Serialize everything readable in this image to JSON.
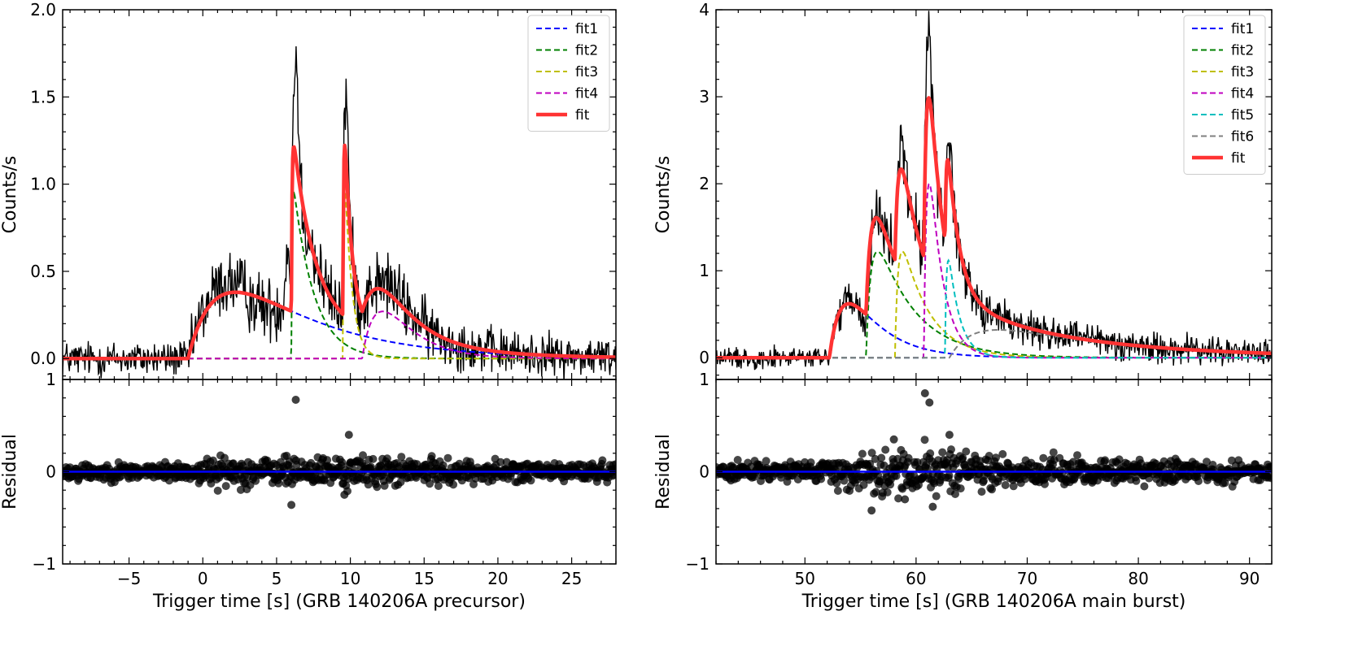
{
  "chart_data": [
    {
      "type": "line",
      "panel": "left",
      "xlabel": "Trigger time [s] (GRB 140206A precursor)",
      "ylabel_top": "Counts/s",
      "ylabel_bottom": "Residual",
      "xlim": [
        -9.5,
        28
      ],
      "ylim_top": [
        -0.12,
        2.0
      ],
      "ylim_bottom": [
        -1,
        1
      ],
      "x_ticks": [
        -5,
        0,
        5,
        10,
        15,
        20,
        25
      ],
      "x_tick_labels": [
        "−5",
        "0",
        "5",
        "10",
        "15",
        "20",
        "25"
      ],
      "y_ticks_top": [
        0.0,
        0.5,
        1.0,
        1.5,
        2.0
      ],
      "y_tick_labels_top": [
        "0.0",
        "0.5",
        "1.0",
        "1.5",
        "2.0"
      ],
      "y_ticks_bottom": [
        -1,
        0,
        1
      ],
      "y_tick_labels_bottom": [
        "−1",
        "0",
        "1"
      ],
      "legend_position": "top-right",
      "components": [
        {
          "name": "fit1",
          "color": "#0000ff",
          "A": 0.38,
          "t0": -1.0,
          "tau1": 2.8,
          "tau2": 6.0
        },
        {
          "name": "fit2",
          "color": "#008000",
          "A": 0.95,
          "t0": 6.0,
          "tau1": 0.05,
          "tau2": 1.4
        },
        {
          "name": "fit3",
          "color": "#bfbf00",
          "A": 0.98,
          "t0": 9.5,
          "tau1": 0.05,
          "tau2": 0.5
        },
        {
          "name": "fit4",
          "color": "#bf00bf",
          "A": 0.27,
          "t0": 10.8,
          "tau1": 2.0,
          "tau2": 2.0
        }
      ],
      "total_fit": {
        "name": "fit",
        "color": "#ff3333"
      },
      "data_extra_peaks": [
        {
          "t": 6.35,
          "h": 0.65,
          "w": 0.12
        },
        {
          "t": 5.8,
          "h": 0.35,
          "w": 0.2
        },
        {
          "t": 9.75,
          "h": 0.4,
          "w": 0.12
        },
        {
          "t": 1.5,
          "h": 0.06,
          "w": 1.0
        },
        {
          "t": 4.0,
          "h": -0.05,
          "w": 0.8
        },
        {
          "t": 12.8,
          "h": 0.05,
          "w": 0.8
        }
      ],
      "data_noise": 0.05,
      "residual_spikes": [
        {
          "t": 6.3,
          "r": 0.78
        },
        {
          "t": 6.0,
          "r": -0.36
        },
        {
          "t": 9.9,
          "r": 0.4
        },
        {
          "t": 9.6,
          "r": -0.25
        }
      ]
    },
    {
      "type": "line",
      "panel": "right",
      "xlabel": "Trigger time [s] (GRB 140206A main burst)",
      "ylabel_top": "Counts/s",
      "ylabel_bottom": "Residual",
      "xlim": [
        42,
        92
      ],
      "ylim_top": [
        -0.25,
        4.0
      ],
      "ylim_bottom": [
        -1,
        1
      ],
      "x_ticks": [
        50,
        60,
        70,
        80,
        90
      ],
      "x_tick_labels": [
        "50",
        "60",
        "70",
        "80",
        "90"
      ],
      "y_ticks_top": [
        0,
        1,
        2,
        3,
        4
      ],
      "y_tick_labels_top": [
        "0",
        "1",
        "2",
        "3",
        "4"
      ],
      "y_ticks_bottom": [
        -1,
        0,
        1
      ],
      "y_tick_labels_bottom": [
        "−1",
        "0",
        "1"
      ],
      "legend_position": "top-right",
      "components": [
        {
          "name": "fit1",
          "color": "#0000ff",
          "A": 0.62,
          "t0": 52.2,
          "tau1": 1.8,
          "tau2": 3.0
        },
        {
          "name": "fit2",
          "color": "#008000",
          "A": 1.22,
          "t0": 55.5,
          "tau1": 0.5,
          "tau2": 3.5
        },
        {
          "name": "fit3",
          "color": "#bfbf00",
          "A": 1.22,
          "t0": 58.1,
          "tau1": 0.3,
          "tau2": 2.5
        },
        {
          "name": "fit4",
          "color": "#bf00bf",
          "A": 2.0,
          "t0": 60.7,
          "tau1": 0.3,
          "tau2": 1.2
        },
        {
          "name": "fit5",
          "color": "#00bfbf",
          "A": 1.12,
          "t0": 62.6,
          "tau1": 0.15,
          "tau2": 1.0
        },
        {
          "name": "fit6",
          "color": "#808080",
          "A": 0.32,
          "t0": 63.0,
          "tau1": 2.5,
          "tau2": 12.0
        }
      ],
      "total_fit": {
        "name": "fit",
        "color": "#ff3333"
      },
      "data_extra_peaks": [
        {
          "t": 61.05,
          "h": 0.85,
          "w": 0.25
        },
        {
          "t": 58.7,
          "h": 0.25,
          "w": 0.3
        },
        {
          "t": 63.0,
          "h": 0.35,
          "w": 0.2
        },
        {
          "t": 55.5,
          "h": -0.15,
          "w": 0.4
        }
      ],
      "data_noise": 0.06,
      "residual_spikes": [
        {
          "t": 60.8,
          "r": 0.85
        },
        {
          "t": 61.2,
          "r": 0.75
        },
        {
          "t": 56.0,
          "r": -0.42
        },
        {
          "t": 63.0,
          "r": 0.4
        },
        {
          "t": 61.5,
          "r": -0.38
        },
        {
          "t": 58.0,
          "r": 0.35
        },
        {
          "t": 59.0,
          "r": -0.3
        }
      ]
    }
  ]
}
